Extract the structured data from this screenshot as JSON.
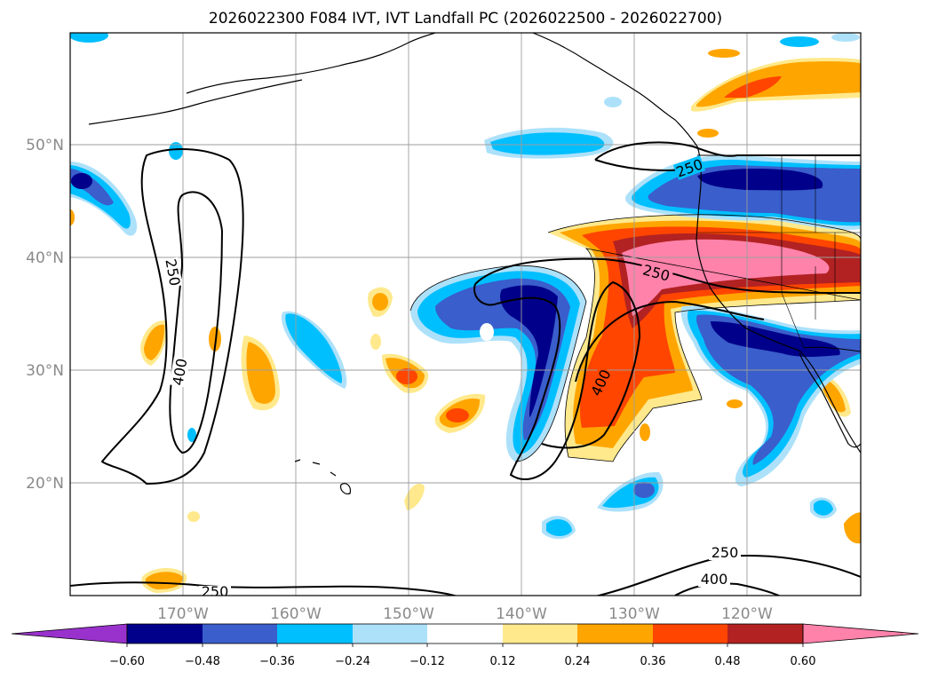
{
  "title": "2026022300 F084 IVT, IVT Landfall PC (2026022500 - 2026022700)",
  "map": {
    "lat_labels": [
      "50°N",
      "40°N",
      "30°N",
      "20°N"
    ],
    "lon_labels": [
      "170°W",
      "160°W",
      "150°W",
      "140°W",
      "130°W",
      "120°W"
    ],
    "extent": {
      "lon_min": -180,
      "lon_max": -110,
      "lat_min": 10,
      "lat_max": 60
    },
    "ivt_contour_levels": [
      "250",
      "400"
    ]
  },
  "colorbar": {
    "ticks": [
      "−0.60",
      "−0.48",
      "−0.36",
      "−0.24",
      "−0.12",
      "0.12",
      "0.24",
      "0.36",
      "0.48",
      "0.60"
    ],
    "colors": {
      "purple": "#9932CC",
      "navy": "#00008B",
      "royal": "#3A5ECB",
      "sky": "#00BFFF",
      "pale_blue": "#ADE1FA",
      "white": "#FFFFFF",
      "pale_yellow": "#FFE98C",
      "orange": "#FFA500",
      "red_orange": "#FF4500",
      "firebrick": "#B22222",
      "pink": "#FF82AB"
    }
  }
}
